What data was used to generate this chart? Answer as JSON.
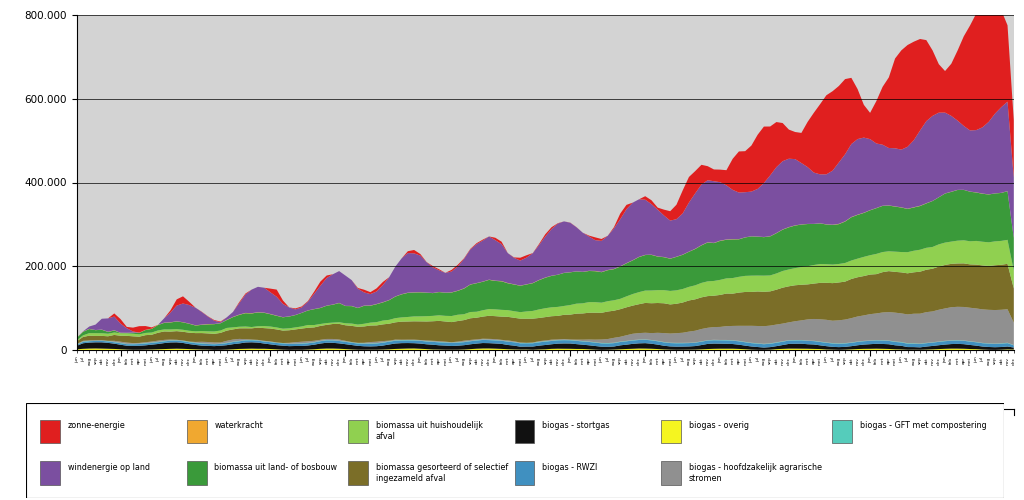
{
  "ylim": [
    0,
    800000
  ],
  "ytick_labels": [
    "0",
    "200.000",
    "400.000",
    "600.000",
    "800.000"
  ],
  "ytick_values": [
    0,
    200000,
    400000,
    600000,
    800000
  ],
  "bg_color": "#d3d3d3",
  "fig_bg_color": "#ffffff",
  "start_year": 2003,
  "start_month": 6,
  "end_year": 2015,
  "end_month": 12,
  "stack_colors": [
    "#f5f520",
    "#111111",
    "#4090c0",
    "#55ccbb",
    "#909090",
    "#7b6e28",
    "#90d050",
    "#3a9a3a",
    "#f0a830",
    "#7b4fa0",
    "#e01f1f"
  ],
  "legend_entries": [
    [
      "zonne-energie",
      "#e01f1f"
    ],
    [
      "windenergie op land",
      "#7b4fa0"
    ],
    [
      "waterkracht",
      "#f0a830"
    ],
    [
      "biomassa uit land- of bosbouw",
      "#3a9a3a"
    ],
    [
      "biomassa uit huishoudelijk\nafval",
      "#90d050"
    ],
    [
      "biomassa gesorteerd of selectief\ningezameld afval",
      "#7b6e28"
    ],
    [
      "biogas - stortgas",
      "#111111"
    ],
    [
      "biogas - RWZI",
      "#4090c0"
    ],
    [
      "biogas - overig",
      "#f5f520"
    ],
    [
      "biogas - hoofdzakelijk agrarische\nstromen",
      "#909090"
    ],
    [
      "biogas - GFT met compostering",
      "#55ccbb"
    ]
  ],
  "month_names": [
    "jan",
    "feb",
    "mrt",
    "apr",
    "mei",
    "jun",
    "jul",
    "aug",
    "sep",
    "okt",
    "nov",
    "dec"
  ]
}
